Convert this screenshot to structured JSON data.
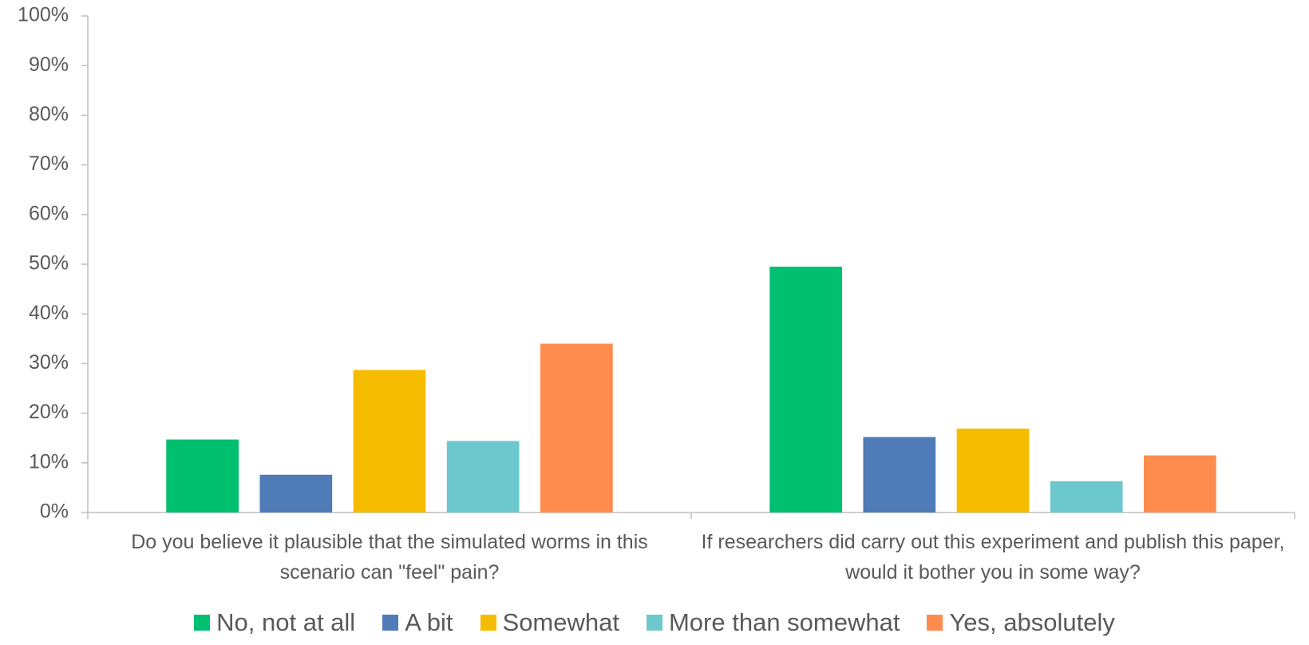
{
  "chart_data": {
    "type": "bar",
    "categories": [
      "Do you believe it plausible that the simulated worms in this scenario can \"feel\" pain?",
      "If researchers did carry out this experiment and publish this paper, would it bother you in some way?"
    ],
    "series": [
      {
        "name": "No, not at all",
        "color": "#00bf6f",
        "values": [
          14.7,
          49.5
        ]
      },
      {
        "name": "A bit",
        "color": "#4f7bb7",
        "values": [
          7.6,
          15.2
        ]
      },
      {
        "name": "Somewhat",
        "color": "#f6bd00",
        "values": [
          28.7,
          16.9
        ]
      },
      {
        "name": "More than somewhat",
        "color": "#6cc8cc",
        "values": [
          14.4,
          6.3
        ]
      },
      {
        "name": "Yes, absolutely",
        "color": "#ff8c4f",
        "values": [
          34.0,
          11.5
        ]
      }
    ],
    "ylim": [
      0,
      100
    ],
    "yticks": [
      {
        "value": 0,
        "label": "0%"
      },
      {
        "value": 10,
        "label": "10%"
      },
      {
        "value": 20,
        "label": "20%"
      },
      {
        "value": 30,
        "label": "30%"
      },
      {
        "value": 40,
        "label": "40%"
      },
      {
        "value": 50,
        "label": "50%"
      },
      {
        "value": 60,
        "label": "60%"
      },
      {
        "value": 70,
        "label": "70%"
      },
      {
        "value": 80,
        "label": "80%"
      },
      {
        "value": 90,
        "label": "90%"
      },
      {
        "value": 100,
        "label": "100%"
      }
    ],
    "grid": false,
    "legend": "bottom"
  }
}
